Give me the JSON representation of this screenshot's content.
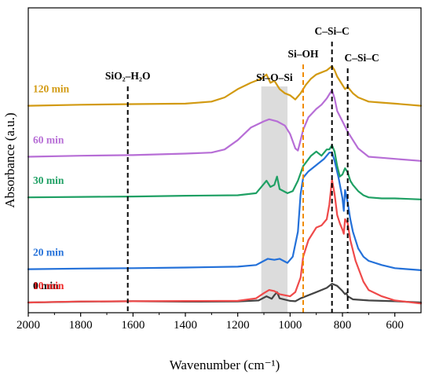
{
  "chart_data": {
    "type": "line",
    "xlabel": "Wavenumber (cm⁻¹)",
    "ylabel": "Absorbance (a.u.)",
    "xlim": [
      2000,
      500
    ],
    "x_reversed": true,
    "x_ticks": [
      2000,
      1800,
      1600,
      1400,
      1200,
      1000,
      800,
      600
    ],
    "grid": false,
    "series": [
      {
        "name": "0 min",
        "color": "#444444",
        "label_color": "#000000",
        "offset": 0.0,
        "x": [
          2000,
          1800,
          1600,
          1400,
          1200,
          1120,
          1090,
          1070,
          1060,
          1050,
          1040,
          1000,
          980,
          960,
          900,
          860,
          840,
          820,
          800,
          790,
          785,
          780,
          760,
          700,
          650,
          600,
          500
        ],
        "y": [
          0.0,
          0.004,
          0.006,
          0.004,
          0.005,
          0.01,
          0.03,
          0.018,
          0.035,
          0.05,
          0.02,
          0.008,
          0.006,
          0.02,
          0.05,
          0.07,
          0.09,
          0.08,
          0.055,
          0.04,
          0.045,
          0.03,
          0.015,
          0.01,
          0.008,
          0.006,
          0.0
        ]
      },
      {
        "name": "10 min",
        "color": "#ef4a4a",
        "label_color": "#ef2323",
        "offset": 0.0,
        "x": [
          2000,
          1800,
          1600,
          1400,
          1200,
          1130,
          1100,
          1080,
          1060,
          1040,
          1000,
          980,
          960,
          950,
          930,
          900,
          880,
          860,
          850,
          840,
          830,
          820,
          810,
          800,
          795,
          790,
          780,
          770,
          750,
          720,
          700,
          650,
          600,
          500
        ],
        "y": [
          0.0,
          0.005,
          0.006,
          0.007,
          0.008,
          0.02,
          0.045,
          0.06,
          0.055,
          0.04,
          0.03,
          0.05,
          0.12,
          0.22,
          0.3,
          0.36,
          0.37,
          0.4,
          0.47,
          0.59,
          0.52,
          0.42,
          0.38,
          0.35,
          0.33,
          0.4,
          0.38,
          0.3,
          0.2,
          0.1,
          0.06,
          0.03,
          0.01,
          -0.005
        ]
      },
      {
        "name": "20 min",
        "color": "#2471d9",
        "label_color": "#2471d9",
        "offset": 0.16,
        "x": [
          2000,
          1800,
          1600,
          1400,
          1200,
          1130,
          1100,
          1085,
          1060,
          1040,
          1010,
          990,
          970,
          960,
          950,
          930,
          900,
          870,
          850,
          840,
          830,
          815,
          800,
          795,
          790,
          780,
          770,
          760,
          740,
          720,
          700,
          650,
          600,
          500
        ],
        "y": [
          0.0,
          0.003,
          0.005,
          0.008,
          0.012,
          0.02,
          0.04,
          0.05,
          0.045,
          0.05,
          0.03,
          0.06,
          0.18,
          0.36,
          0.44,
          0.47,
          0.5,
          0.53,
          0.56,
          0.56,
          0.52,
          0.44,
          0.34,
          0.28,
          0.38,
          0.32,
          0.24,
          0.18,
          0.1,
          0.06,
          0.04,
          0.02,
          0.005,
          -0.005
        ]
      },
      {
        "name": "30 min",
        "color": "#1fa064",
        "label_color": "#1fa064",
        "offset": 0.505,
        "x": [
          2000,
          1800,
          1600,
          1400,
          1200,
          1130,
          1110,
          1090,
          1075,
          1060,
          1050,
          1040,
          1010,
          990,
          970,
          950,
          920,
          900,
          880,
          860,
          850,
          840,
          830,
          820,
          810,
          800,
          790,
          780,
          770,
          760,
          740,
          720,
          700,
          650,
          600,
          500
        ],
        "y": [
          0.0,
          0.002,
          0.004,
          0.008,
          0.01,
          0.02,
          0.05,
          0.08,
          0.05,
          0.06,
          0.1,
          0.04,
          0.02,
          0.03,
          0.08,
          0.15,
          0.2,
          0.22,
          0.2,
          0.23,
          0.23,
          0.25,
          0.22,
          0.15,
          0.1,
          0.11,
          0.14,
          0.12,
          0.08,
          0.06,
          0.03,
          0.01,
          0.0,
          -0.005,
          -0.005,
          -0.01
        ]
      },
      {
        "name": "60 min",
        "color": "#b76ed6",
        "label_color": "#b76ed6",
        "offset": 0.7,
        "x": [
          2000,
          1800,
          1600,
          1400,
          1300,
          1250,
          1200,
          1150,
          1100,
          1080,
          1050,
          1020,
          1000,
          980,
          970,
          960,
          950,
          930,
          900,
          880,
          860,
          850,
          840,
          830,
          820,
          800,
          780,
          760,
          740,
          720,
          700,
          650,
          600,
          500
        ],
        "y": [
          0.0,
          0.005,
          0.008,
          0.015,
          0.02,
          0.035,
          0.08,
          0.14,
          0.17,
          0.18,
          0.17,
          0.15,
          0.11,
          0.04,
          0.03,
          0.08,
          0.13,
          0.19,
          0.23,
          0.25,
          0.28,
          0.3,
          0.32,
          0.28,
          0.22,
          0.17,
          0.12,
          0.08,
          0.04,
          0.02,
          0.0,
          -0.005,
          -0.01,
          -0.02
        ]
      },
      {
        "name": "120 min",
        "color": "#d29a12",
        "label_color": "#d29a12",
        "offset": 0.945,
        "x": [
          2000,
          1800,
          1600,
          1400,
          1300,
          1250,
          1200,
          1150,
          1110,
          1090,
          1075,
          1060,
          1050,
          1040,
          1020,
          1000,
          980,
          960,
          940,
          920,
          900,
          880,
          860,
          850,
          840,
          830,
          820,
          800,
          790,
          780,
          760,
          740,
          720,
          700,
          650,
          600,
          500
        ],
        "y": [
          0.0,
          0.005,
          0.008,
          0.01,
          0.02,
          0.04,
          0.08,
          0.11,
          0.13,
          0.15,
          0.11,
          0.12,
          0.1,
          0.08,
          0.06,
          0.05,
          0.03,
          0.06,
          0.1,
          0.13,
          0.15,
          0.16,
          0.17,
          0.18,
          0.19,
          0.17,
          0.14,
          0.1,
          0.08,
          0.09,
          0.06,
          0.04,
          0.03,
          0.02,
          0.015,
          0.01,
          0.0
        ]
      }
    ],
    "annotations": [
      {
        "label": "SiO₂–H₂O",
        "x": 1620,
        "style": "dashed",
        "color": "#000000"
      },
      {
        "label": "Si–OH",
        "x": 950,
        "style": "dashed",
        "color": "#f08c00"
      },
      {
        "label": "C–Si–C",
        "x": 840,
        "style": "dashed",
        "color": "#000000"
      },
      {
        "label": "C–Si–C",
        "x": 780,
        "style": "dashed",
        "color": "#000000"
      }
    ],
    "shaded_band": {
      "label": "Si–O–Si",
      "x_from": 1110,
      "x_to": 1010,
      "color": "#dcdcdc"
    }
  }
}
